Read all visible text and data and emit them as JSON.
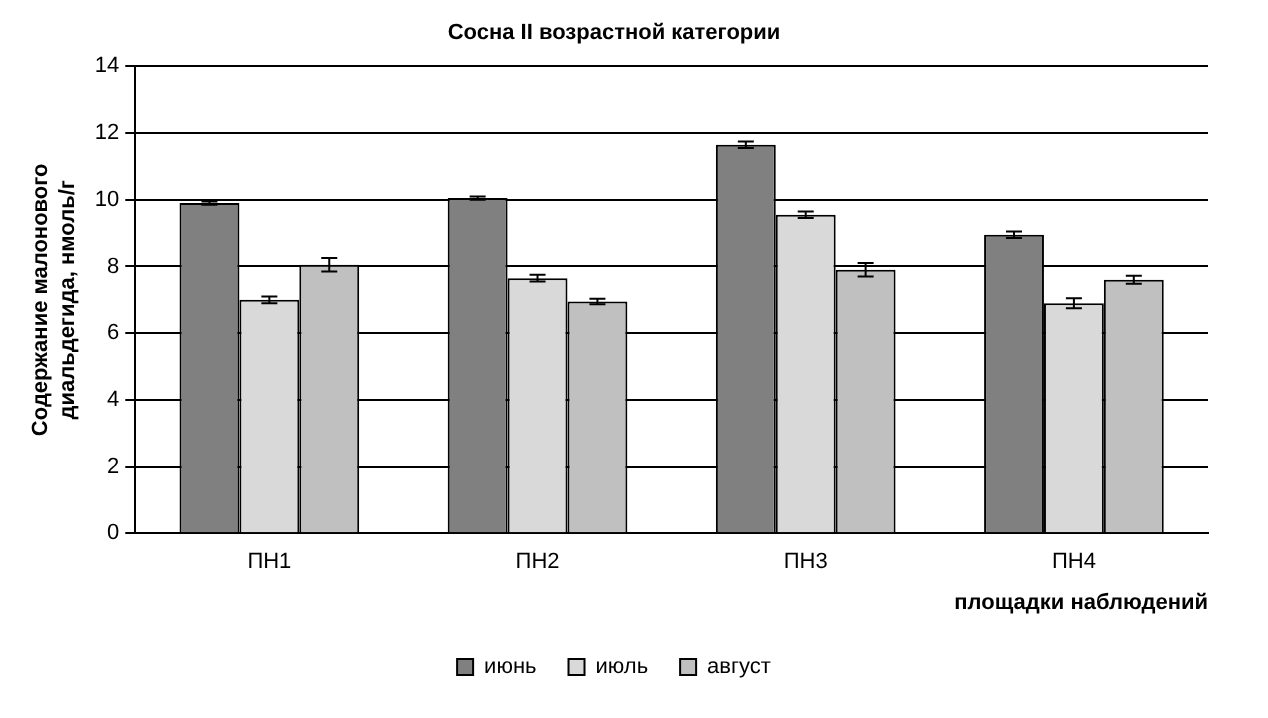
{
  "chart_data": {
    "type": "bar",
    "title": "Сосна II возрастной категории",
    "xlabel": "площадки наблюдений",
    "ylabel": "Содержание малонового диальдегида, нмоль/г",
    "categories": [
      "ПН1",
      "ПН2",
      "ПН3",
      "ПН4"
    ],
    "series": [
      {
        "name": "июнь",
        "color": "#808080",
        "values": [
          9.9,
          10.05,
          11.65,
          8.95
        ],
        "errors": [
          0.05,
          0.05,
          0.1,
          0.1
        ]
      },
      {
        "name": "июль",
        "color": "#d9d9d9",
        "values": [
          7.0,
          7.65,
          9.55,
          6.9
        ],
        "errors": [
          0.1,
          0.1,
          0.1,
          0.15
        ]
      },
      {
        "name": "август",
        "color": "#c0c0c0",
        "values": [
          8.05,
          6.95,
          7.9,
          7.6
        ],
        "errors": [
          0.2,
          0.08,
          0.2,
          0.12
        ]
      }
    ],
    "ylim": [
      0,
      14
    ],
    "yticks": [
      0,
      2,
      4,
      6,
      8,
      10,
      12,
      14
    ],
    "grid": "y",
    "legend": "bottom"
  }
}
